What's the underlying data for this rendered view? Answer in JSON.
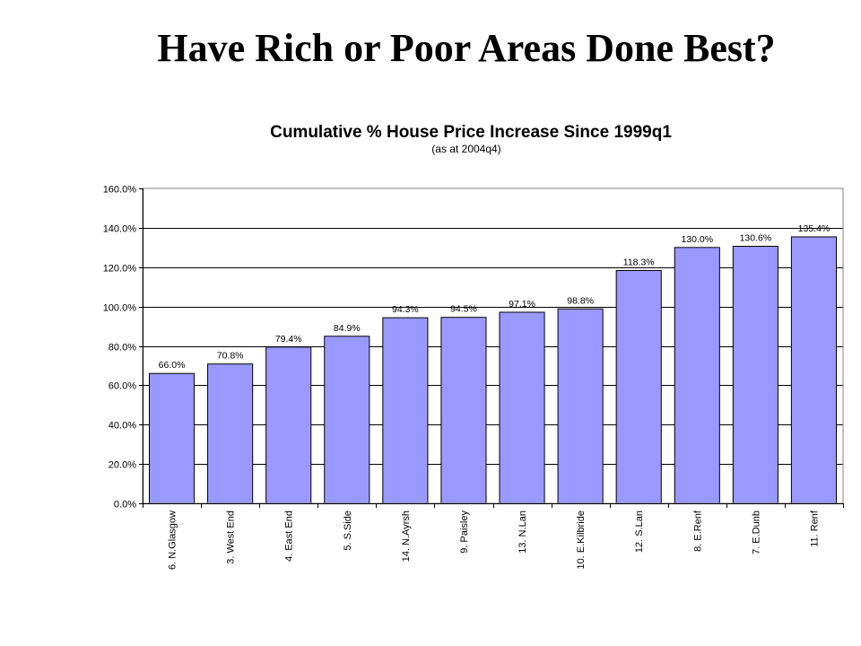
{
  "slide": {
    "title": "Have Rich or Poor Areas Done Best?"
  },
  "chart_data": {
    "type": "bar",
    "title": "Cumulative % House Price Increase Since 1999q1",
    "subtitle": "(as at 2004q4)",
    "categories": [
      "6. N.Glasgow",
      "3. West End",
      "4. East End",
      "5. S.Side",
      "14. N.Ayrsh",
      "9. Paisley",
      "13. N.Lan",
      "10. E.Kilbride",
      "12. S.Lan",
      "8. E.Renf",
      "7. E.Dunb",
      "11. Renf"
    ],
    "values": [
      66.0,
      70.8,
      79.4,
      84.9,
      94.3,
      94.5,
      97.1,
      98.8,
      118.3,
      130.0,
      130.6,
      135.4
    ],
    "value_labels": [
      "66.0%",
      "70.8%",
      "79.4%",
      "84.9%",
      "94.3%",
      "94.5%",
      "97.1%",
      "98.8%",
      "118.3%",
      "130.0%",
      "130.6%",
      "135.4%"
    ],
    "y_ticks": [
      "0.0%",
      "20.0%",
      "40.0%",
      "60.0%",
      "80.0%",
      "100.0%",
      "120.0%",
      "140.0%",
      "160.0%"
    ],
    "ylim": [
      0,
      160
    ],
    "y_step": 20,
    "grid": true,
    "legend": "none",
    "colors": {
      "bar_fill": "#9999ff",
      "bar_stroke": "#000000",
      "grid": "#000000",
      "axis": "#808080"
    }
  }
}
